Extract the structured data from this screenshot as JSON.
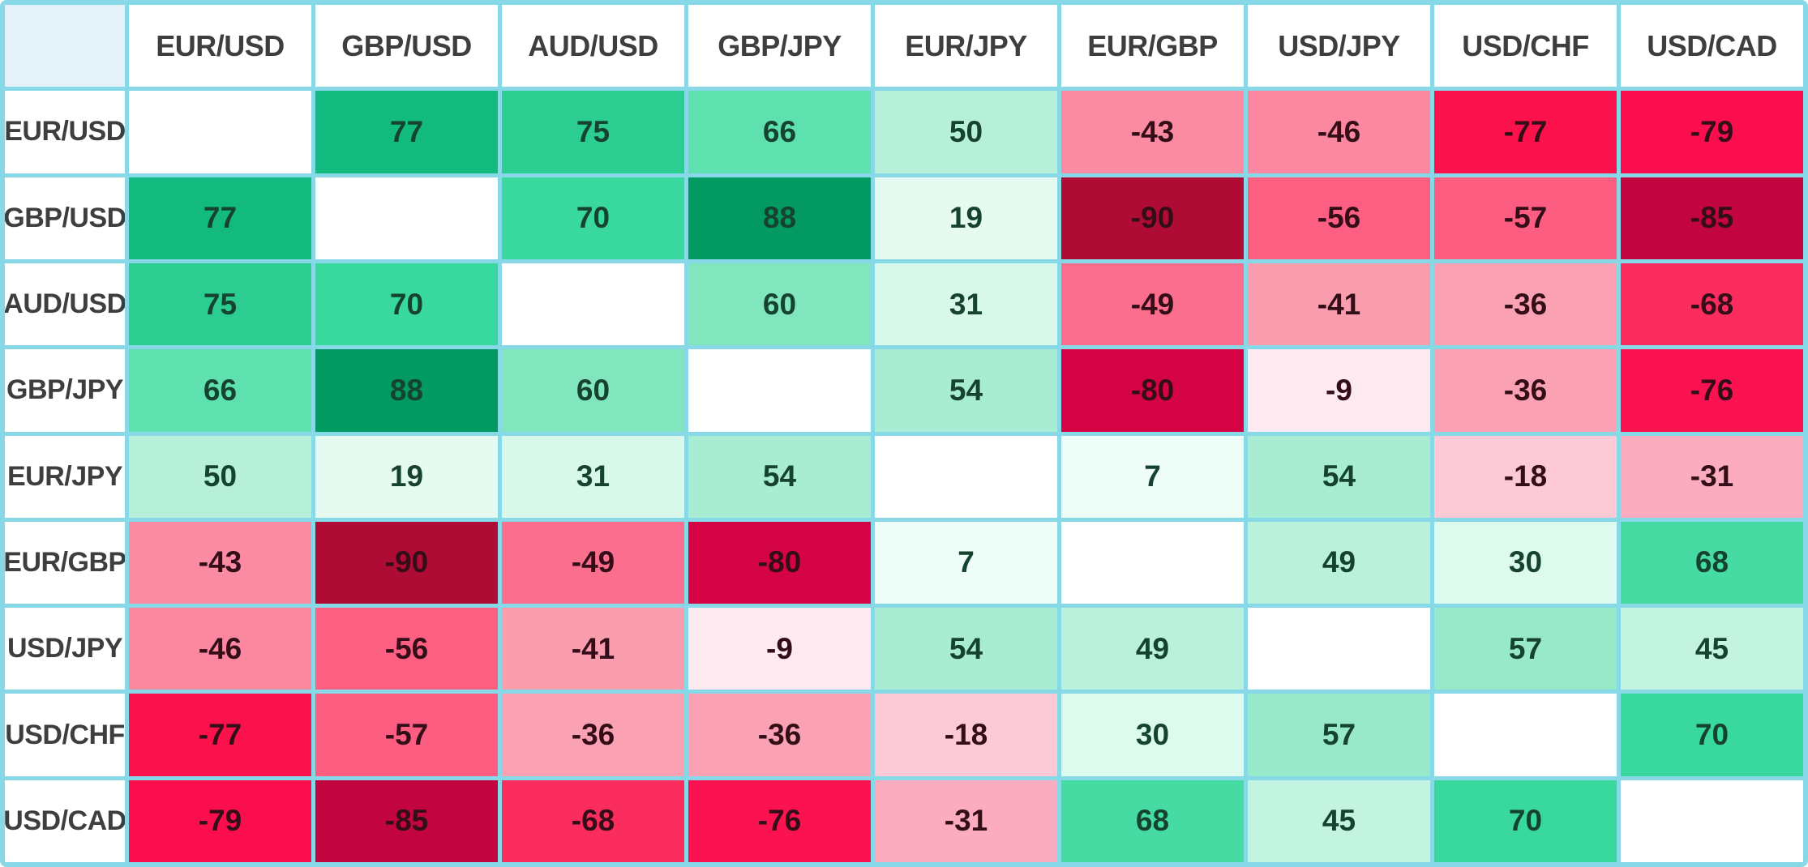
{
  "corner_label": "",
  "chart_data": {
    "type": "heatmap",
    "x_labels": [
      "EUR/USD",
      "GBP/USD",
      "AUD/USD",
      "GBP/JPY",
      "EUR/JPY",
      "EUR/GBP",
      "USD/JPY",
      "USD/CHF",
      "USD/CAD"
    ],
    "y_labels": [
      "EUR/USD",
      "GBP/USD",
      "AUD/USD",
      "GBP/JPY",
      "EUR/JPY",
      "EUR/GBP",
      "USD/JPY",
      "USD/CHF",
      "USD/CAD"
    ],
    "matrix": [
      [
        null,
        77,
        75,
        66,
        50,
        -43,
        -46,
        -77,
        -79
      ],
      [
        77,
        null,
        70,
        88,
        19,
        -90,
        -56,
        -57,
        -85
      ],
      [
        75,
        70,
        null,
        60,
        31,
        -49,
        -41,
        -36,
        -68
      ],
      [
        66,
        88,
        60,
        null,
        54,
        -80,
        -9,
        -36,
        -76
      ],
      [
        50,
        19,
        31,
        54,
        null,
        7,
        54,
        -18,
        -31
      ],
      [
        -43,
        -90,
        -49,
        -80,
        7,
        null,
        49,
        30,
        68
      ],
      [
        -46,
        -56,
        -41,
        -9,
        54,
        49,
        null,
        57,
        45
      ],
      [
        -77,
        -57,
        -36,
        -36,
        -18,
        30,
        57,
        null,
        70
      ],
      [
        -79,
        -85,
        -68,
        -76,
        -31,
        68,
        45,
        70,
        null
      ]
    ],
    "diagonal": "blank",
    "value_range": [
      -100,
      100
    ],
    "legend": "none",
    "colormap": "diverging: dark crimson (strong negative) through pink to white (0) through mint to dark emerald (strong positive)"
  },
  "style": {
    "grid_line_color": "#88d9e8",
    "corner_bg": "#e3f2f6",
    "header_bg": "#ffffff",
    "diagonal_bg": "#ffffff",
    "header_text_color": "#3e3e3e",
    "positive_text_color": "#16432f",
    "negative_text_color": "#330d17",
    "value_colors": {
      "88": "#029a62",
      "77": "#12ba80",
      "75": "#2bcd91",
      "70": "#38d89e",
      "68": "#47dba4",
      "66": "#5ee0af",
      "60": "#81e5bd",
      "57": "#98e9ca",
      "54": "#a8edd3",
      "50": "#b6f0da",
      "49": "#b9f1dc",
      "45": "#c3f4e1",
      "31": "#d8f8eb",
      "30": "#dcfaee",
      "19": "#e5fbf2",
      "7": "#eefdf7",
      "-9": "#fdeaf0",
      "-18": "#fccad6",
      "-31": "#fbadbf",
      "-36": "#faa2b4",
      "-41": "#fa9daf",
      "-43": "#fb8ba2",
      "-46": "#fb87a0",
      "-49": "#fc6e8e",
      "-56": "#fc5f82",
      "-57": "#fc5d80",
      "-68": "#fb2d5f",
      "-76": "#fb1250",
      "-77": "#fb114b",
      "-79": "#fb0e4e",
      "-80": "#d30345",
      "-85": "#c20440",
      "-90": "#ae0b35"
    }
  }
}
